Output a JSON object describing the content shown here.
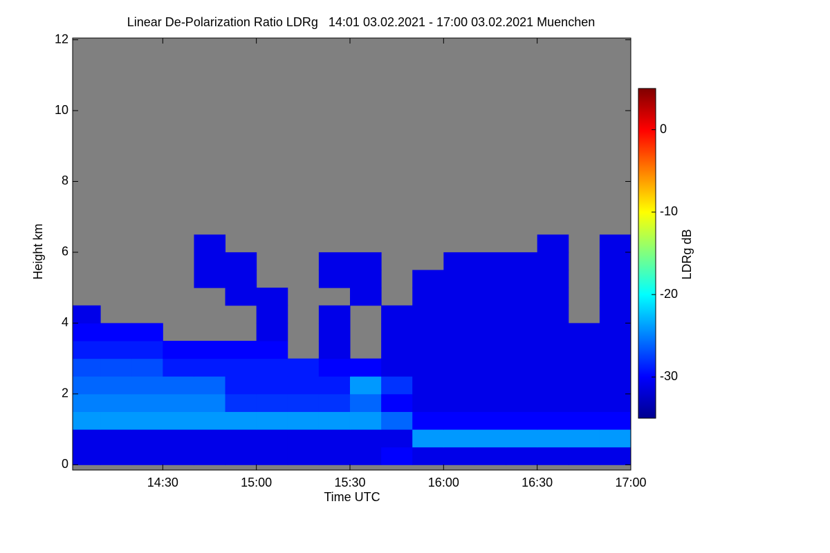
{
  "chart_data": {
    "type": "heatmap",
    "title": "Linear De-Polarization Ratio LDRg   14:01 03.02.2021 - 17:00 03.02.2021 Muenchen",
    "x_label": "Time UTC",
    "y_label": "Height km",
    "colorbar_label": "LDRg dB",
    "background": "#808080",
    "xlim": [
      14.0185,
      17.0
    ],
    "xticks": [
      {
        "value": 14.5,
        "label": "14:30"
      },
      {
        "value": 15.0,
        "label": "15:00"
      },
      {
        "value": 15.5,
        "label": "15:30"
      },
      {
        "value": 16.0,
        "label": "16:00"
      },
      {
        "value": 16.5,
        "label": "16:30"
      },
      {
        "value": 17.0,
        "label": "17:00"
      }
    ],
    "ylim": [
      -0.15,
      12.05
    ],
    "yticks": [
      0,
      2,
      4,
      6,
      8,
      10,
      12
    ],
    "zlim": [
      -35,
      5
    ],
    "zticks": [
      -30,
      -20,
      -10,
      0
    ],
    "colorscale": [
      "#00008f",
      "#0000ff",
      "#0080ff",
      "#00ffff",
      "#80ff80",
      "#ffff00",
      "#ff8000",
      "#ff0000",
      "#800000"
    ],
    "x_edges": [
      14.0185,
      14.1667,
      14.3333,
      14.5,
      14.6667,
      14.8333,
      15.0,
      15.1667,
      15.3333,
      15.5,
      15.6667,
      15.8333,
      16.0,
      16.1667,
      16.3333,
      16.5,
      16.6667,
      16.8333,
      17.0
    ],
    "y_edges": [
      0,
      0.5,
      1,
      1.5,
      2,
      2.5,
      3,
      3.5,
      4,
      4.5,
      5,
      5.5,
      6,
      6.5
    ],
    "z": [
      [
        -31,
        -31,
        -31,
        -31,
        -31,
        -31,
        -31,
        -31,
        -31,
        -31,
        -30,
        -31,
        -31,
        -31,
        -31,
        -31,
        -31,
        -31
      ],
      [
        -31,
        -31,
        -31,
        -31,
        -31,
        -31,
        -31,
        -31,
        -31,
        -31,
        -31,
        -24,
        -24,
        -24,
        -24,
        -24,
        -24,
        -24
      ],
      [
        -24,
        -24,
        -24,
        -24,
        -24,
        -24,
        -24,
        -24,
        -24,
        -24,
        -26,
        -30,
        -30,
        -30,
        -30,
        -30,
        -30,
        -30
      ],
      [
        -25,
        -25,
        -25,
        -25,
        -25,
        -28,
        -28,
        -28,
        -28,
        -26,
        -30,
        -31,
        -31,
        -31,
        -31,
        -31,
        -31,
        -31
      ],
      [
        -26,
        -26,
        -26,
        -26,
        -26,
        -29,
        -29,
        -29,
        -29,
        -24,
        -28,
        -31,
        -31,
        -31,
        -31,
        -31,
        -31,
        -31
      ],
      [
        -27,
        -27,
        -27,
        -29,
        -29,
        -29,
        -29,
        -29,
        -30,
        -30,
        -31,
        -31,
        -31,
        -31,
        -31,
        -31,
        -31,
        -31
      ],
      [
        -29,
        -29,
        -29,
        -30,
        -30,
        -30,
        -30,
        null,
        -31,
        null,
        -31,
        -31,
        -31,
        -31,
        -31,
        -31,
        -31,
        -31
      ],
      [
        -30,
        -30,
        -30,
        null,
        null,
        null,
        -31,
        null,
        -31,
        null,
        -31,
        -31,
        -31,
        -31,
        -31,
        -31,
        -31,
        -31
      ],
      [
        -31,
        null,
        null,
        null,
        null,
        null,
        -31,
        null,
        -31,
        null,
        -31,
        -31,
        -31,
        -31,
        -31,
        -31,
        null,
        -31
      ],
      [
        null,
        null,
        null,
        null,
        null,
        -31,
        -31,
        null,
        null,
        -31,
        null,
        -31,
        -31,
        -31,
        -31,
        -31,
        null,
        -31
      ],
      [
        null,
        null,
        null,
        null,
        -31,
        -31,
        null,
        null,
        -31,
        -31,
        null,
        -31,
        -31,
        -31,
        -31,
        -31,
        null,
        -31
      ],
      [
        null,
        null,
        null,
        null,
        -31,
        -31,
        null,
        null,
        -31,
        -31,
        null,
        null,
        -31,
        -31,
        -31,
        -31,
        null,
        -31
      ],
      [
        null,
        null,
        null,
        null,
        -31,
        null,
        null,
        null,
        null,
        null,
        null,
        null,
        null,
        null,
        null,
        -31,
        null,
        -31
      ]
    ]
  }
}
